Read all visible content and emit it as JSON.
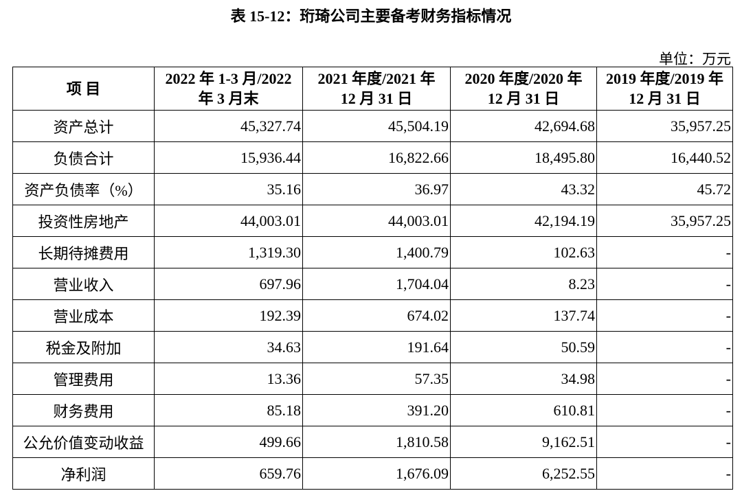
{
  "title": "表 15-12：珩琦公司主要备考财务指标情况",
  "unit": "单位：万元",
  "table": {
    "header": [
      "项  目",
      "2022 年 1-3 月/2022\n年 3 月末",
      "2021 年度/2021 年\n12 月 31 日",
      "2020 年度/2020 年\n12 月 31 日",
      "2019 年度/2019 年\n12 月 31 日"
    ],
    "rows": [
      [
        "资产总计",
        "45,327.74",
        "45,504.19",
        "42,694.68",
        "35,957.25"
      ],
      [
        "负债合计",
        "15,936.44",
        "16,822.66",
        "18,495.80",
        "16,440.52"
      ],
      [
        "资产负债率（%）",
        "35.16",
        "36.97",
        "43.32",
        "45.72"
      ],
      [
        "投资性房地产",
        "44,003.01",
        "44,003.01",
        "42,194.19",
        "35,957.25"
      ],
      [
        "长期待摊费用",
        "1,319.30",
        "1,400.79",
        "102.63",
        "-"
      ],
      [
        "营业收入",
        "697.96",
        "1,704.04",
        "8.23",
        "-"
      ],
      [
        "营业成本",
        "192.39",
        "674.02",
        "137.74",
        "-"
      ],
      [
        "税金及附加",
        "34.63",
        "191.64",
        "50.59",
        "-"
      ],
      [
        "管理费用",
        "13.36",
        "57.35",
        "34.98",
        "-"
      ],
      [
        "财务费用",
        "85.18",
        "391.20",
        "610.81",
        "-"
      ],
      [
        "公允价值变动收益",
        "499.66",
        "1,810.58",
        "9,162.51",
        "-"
      ],
      [
        "净利润",
        "659.76",
        "1,676.09",
        "6,252.55",
        "-"
      ]
    ]
  }
}
